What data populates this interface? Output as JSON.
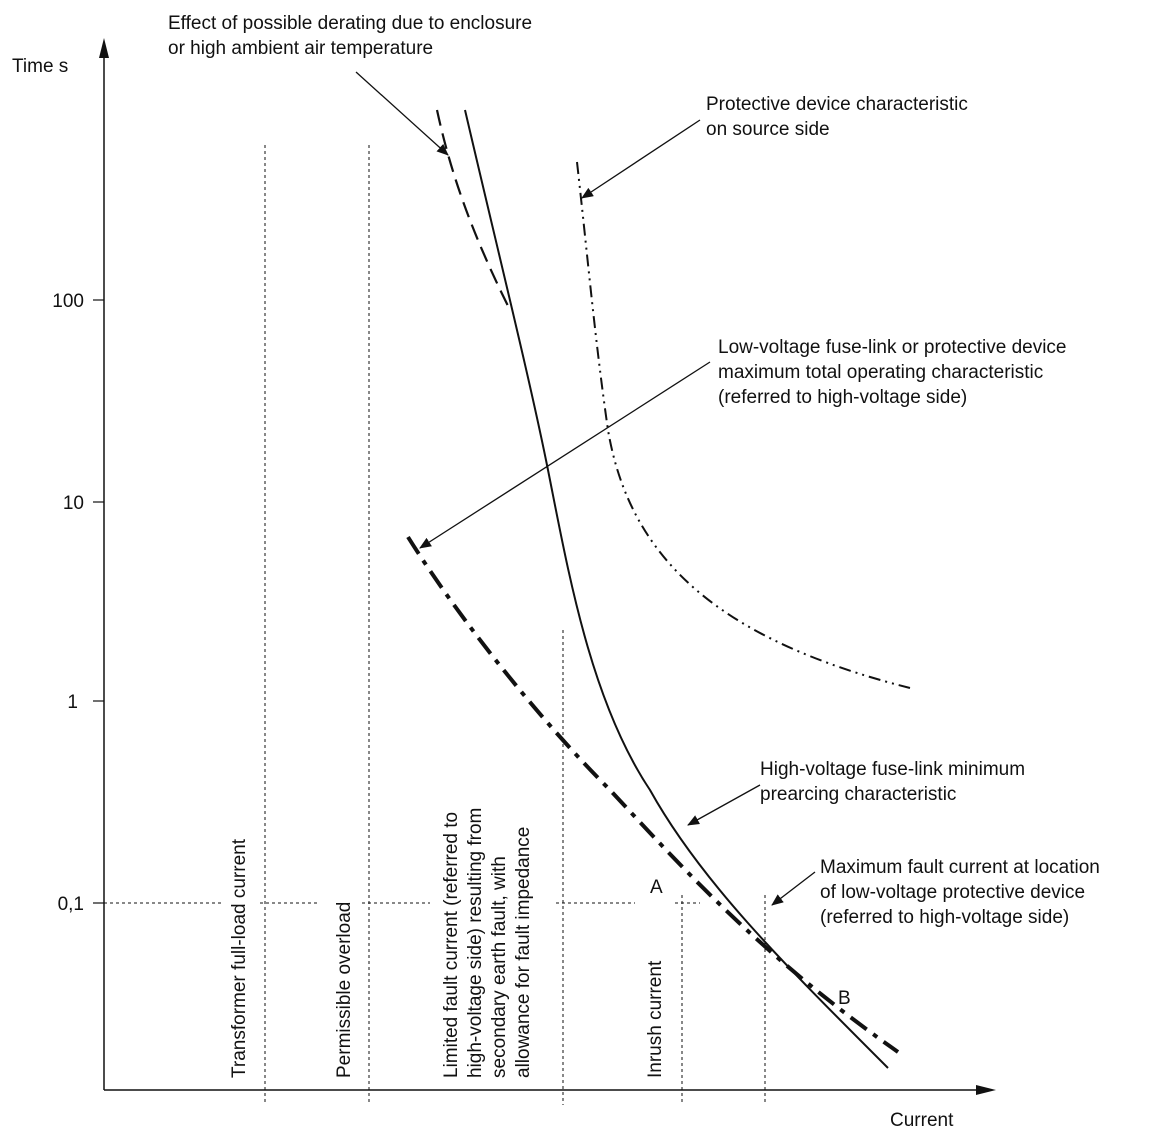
{
  "axes": {
    "y_label": "Time    s",
    "x_label": "Current",
    "y_ticks": [
      "100",
      "10",
      "1",
      "0,1"
    ]
  },
  "annotations": {
    "derating": [
      "Effect of possible derating due to enclosure",
      "or high ambient air temperature"
    ],
    "source_side": [
      "Protective device characteristic",
      "on source side"
    ],
    "lv_fuse": [
      "Low-voltage fuse-link or protective device",
      "maximum total operating characteristic",
      "(referred to high-voltage side)"
    ],
    "hv_fuse": [
      "High-voltage fuse-link minimum",
      "prearcing characteristic"
    ],
    "max_fault": [
      "Maximum fault current at location",
      "of low-voltage protective device",
      "(referred to high-voltage side)"
    ]
  },
  "regions": {
    "full_load": [
      "Transformer full-load current"
    ],
    "overload": [
      "Permissible overload"
    ],
    "limited_fault": [
      "Limited fault current (referred to",
      "high-voltage side) resulting from",
      "secondary earth fault, with",
      "allowance for fault impedance"
    ],
    "inrush": [
      "Inrush current"
    ]
  },
  "points": {
    "a": "A",
    "b": "B"
  },
  "curves": [
    {
      "key": "hv_fuse_min_prearcing",
      "style": "solid"
    },
    {
      "key": "derating",
      "style": "dashed"
    },
    {
      "key": "source_side_device",
      "style": "dash-dot-dot"
    },
    {
      "key": "lv_fuse_max_operating",
      "style": "dash-dot"
    }
  ]
}
